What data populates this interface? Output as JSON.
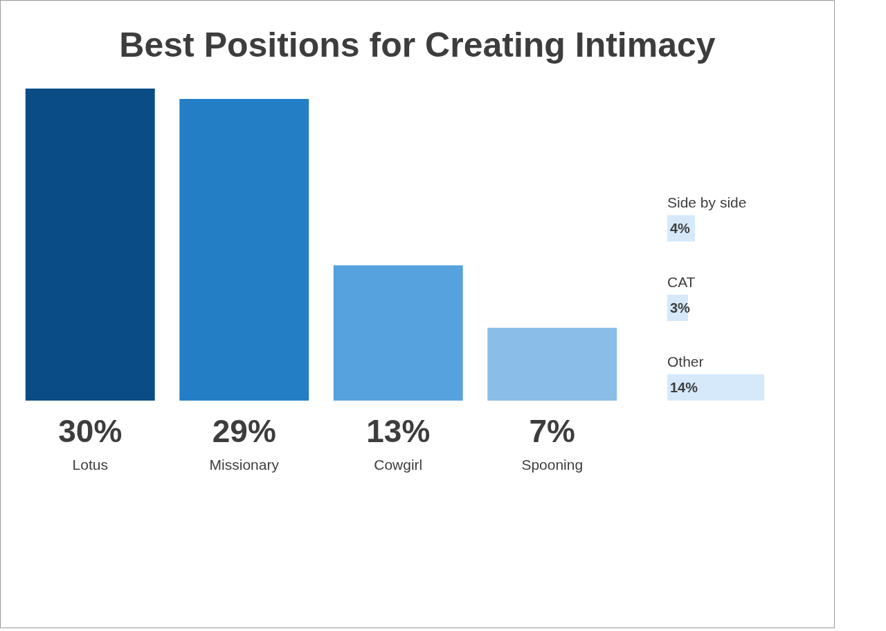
{
  "chart_data": [
    {
      "type": "bar",
      "title": "Best Positions for Creating Intimacy",
      "categories": [
        "Lotus",
        "Missionary",
        "Cowgirl",
        "Spooning"
      ],
      "values": [
        30,
        29,
        13,
        7
      ],
      "value_labels": [
        "30%",
        "29%",
        "13%",
        "7%"
      ],
      "colors": [
        "#0a4c85",
        "#237ec6",
        "#55a2df",
        "#8bbde9"
      ],
      "ylim": [
        0,
        30
      ],
      "grid": false,
      "data_labels": true,
      "tick_labels": false
    },
    {
      "type": "bar",
      "orientation": "horizontal",
      "categories": [
        "Side by side",
        "CAT",
        "Other"
      ],
      "values": [
        4,
        3,
        14
      ],
      "value_labels": [
        "4%",
        "3%",
        "14%"
      ],
      "color": "#d5e9fb",
      "xlim": [
        0,
        14
      ],
      "grid": false,
      "data_labels": true,
      "tick_labels": false
    }
  ]
}
